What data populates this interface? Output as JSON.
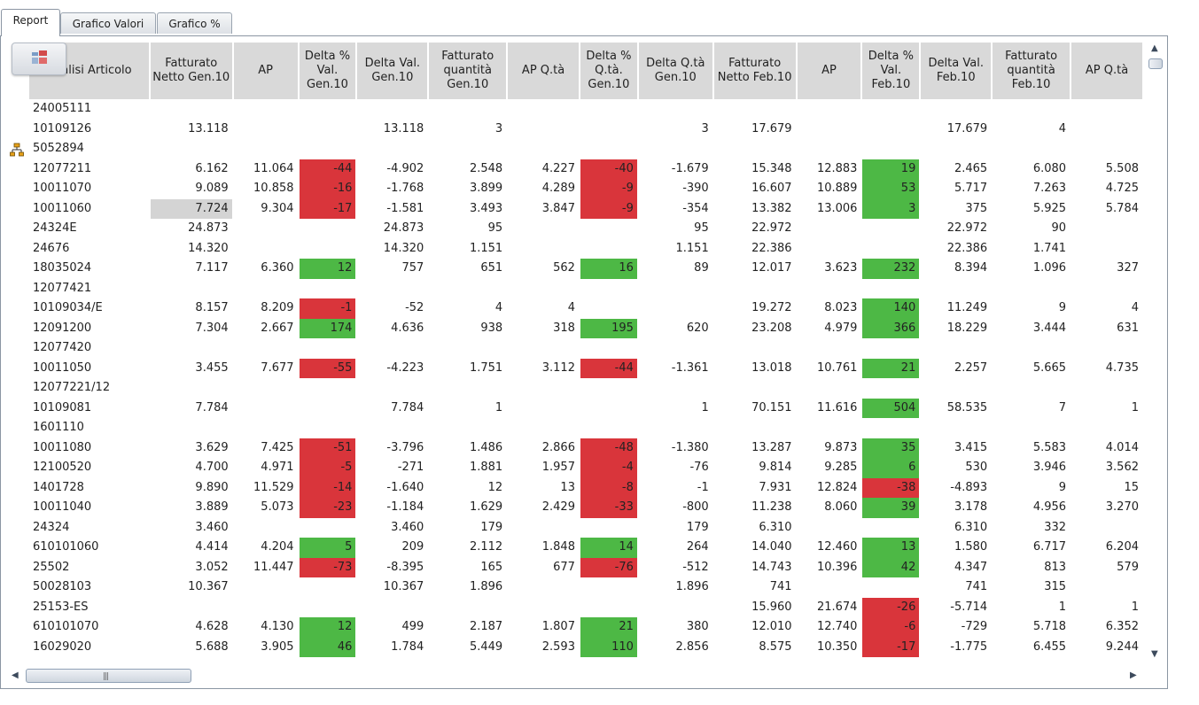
{
  "tabs": [
    "Report",
    "Grafico Valori",
    "Grafico %"
  ],
  "icons": {
    "toolbar": "layout-toggle-icon",
    "tree": "hierarchy-icon"
  },
  "colors": {
    "negative": "#d9353b",
    "positive": "#4db845",
    "header": "#d9d9d9"
  },
  "columns": [
    "Analisi Articolo",
    "Fatturato Netto Gen.10",
    "AP",
    "Delta % Val. Gen.10",
    "Delta Val. Gen.10",
    "Fatturato quantità Gen.10",
    "AP Q.tà",
    "Delta % Q.tà. Gen.10",
    "Delta Q.tà Gen.10",
    "Fatturato Netto Feb.10",
    "AP",
    "Delta % Val. Feb.10",
    "Delta Val. Feb.10",
    "Fatturato quantità Feb.10",
    "AP Q.tà"
  ],
  "rows": [
    [
      "24005111",
      "",
      "",
      "",
      "",
      "",
      "",
      "",
      "",
      "",
      "",
      "",
      "",
      "",
      ""
    ],
    [
      "10109126",
      "13.118",
      "",
      "",
      "13.118",
      "3",
      "",
      "",
      "3",
      "17.679",
      "",
      "",
      "17.679",
      "4",
      ""
    ],
    [
      "5052894",
      "",
      "",
      "",
      "",
      "",
      "",
      "",
      "",
      "",
      "",
      "",
      "",
      "",
      ""
    ],
    [
      "12077211",
      "6.162",
      "11.064",
      "-44",
      "-4.902",
      "2.548",
      "4.227",
      "-40",
      "-1.679",
      "15.348",
      "12.883",
      "19",
      "2.465",
      "6.080",
      "5.508"
    ],
    [
      "10011070",
      "9.089",
      "10.858",
      "-16",
      "-1.768",
      "3.899",
      "4.289",
      "-9",
      "-390",
      "16.607",
      "10.889",
      "53",
      "5.717",
      "7.263",
      "4.725"
    ],
    [
      "10011060",
      "7.724",
      "9.304",
      "-17",
      "-1.581",
      "3.493",
      "3.847",
      "-9",
      "-354",
      "13.382",
      "13.006",
      "3",
      "375",
      "5.925",
      "5.784"
    ],
    [
      "24324E",
      "24.873",
      "",
      "",
      "24.873",
      "95",
      "",
      "",
      "95",
      "22.972",
      "",
      "",
      "22.972",
      "90",
      ""
    ],
    [
      "24676",
      "14.320",
      "",
      "",
      "14.320",
      "1.151",
      "",
      "",
      "1.151",
      "22.386",
      "",
      "",
      "22.386",
      "1.741",
      ""
    ],
    [
      "18035024",
      "7.117",
      "6.360",
      "12",
      "757",
      "651",
      "562",
      "16",
      "89",
      "12.017",
      "3.623",
      "232",
      "8.394",
      "1.096",
      "327"
    ],
    [
      "12077421",
      "",
      "",
      "",
      "",
      "",
      "",
      "",
      "",
      "",
      "",
      "",
      "",
      "",
      ""
    ],
    [
      "10109034/E",
      "8.157",
      "8.209",
      "-1",
      "-52",
      "4",
      "4",
      "",
      "",
      "19.272",
      "8.023",
      "140",
      "11.249",
      "9",
      "4"
    ],
    [
      "12091200",
      "7.304",
      "2.667",
      "174",
      "4.636",
      "938",
      "318",
      "195",
      "620",
      "23.208",
      "4.979",
      "366",
      "18.229",
      "3.444",
      "631"
    ],
    [
      "12077420",
      "",
      "",
      "",
      "",
      "",
      "",
      "",
      "",
      "",
      "",
      "",
      "",
      "",
      ""
    ],
    [
      "10011050",
      "3.455",
      "7.677",
      "-55",
      "-4.223",
      "1.751",
      "3.112",
      "-44",
      "-1.361",
      "13.018",
      "10.761",
      "21",
      "2.257",
      "5.665",
      "4.735"
    ],
    [
      "12077221/12",
      "",
      "",
      "",
      "",
      "",
      "",
      "",
      "",
      "",
      "",
      "",
      "",
      "",
      ""
    ],
    [
      "10109081",
      "7.784",
      "",
      "",
      "7.784",
      "1",
      "",
      "",
      "1",
      "70.151",
      "11.616",
      "504",
      "58.535",
      "7",
      "1"
    ],
    [
      "1601110",
      "",
      "",
      "",
      "",
      "",
      "",
      "",
      "",
      "",
      "",
      "",
      "",
      "",
      ""
    ],
    [
      "10011080",
      "3.629",
      "7.425",
      "-51",
      "-3.796",
      "1.486",
      "2.866",
      "-48",
      "-1.380",
      "13.287",
      "9.873",
      "35",
      "3.415",
      "5.583",
      "4.014"
    ],
    [
      "12100520",
      "4.700",
      "4.971",
      "-5",
      "-271",
      "1.881",
      "1.957",
      "-4",
      "-76",
      "9.814",
      "9.285",
      "6",
      "530",
      "3.946",
      "3.562"
    ],
    [
      "1401728",
      "9.890",
      "11.529",
      "-14",
      "-1.640",
      "12",
      "13",
      "-8",
      "-1",
      "7.931",
      "12.824",
      "-38",
      "-4.893",
      "9",
      "15"
    ],
    [
      "10011040",
      "3.889",
      "5.073",
      "-23",
      "-1.184",
      "1.629",
      "2.429",
      "-33",
      "-800",
      "11.238",
      "8.060",
      "39",
      "3.178",
      "4.956",
      "3.270"
    ],
    [
      "24324",
      "3.460",
      "",
      "",
      "3.460",
      "179",
      "",
      "",
      "179",
      "6.310",
      "",
      "",
      "6.310",
      "332",
      ""
    ],
    [
      "610101060",
      "4.414",
      "4.204",
      "5",
      "209",
      "2.112",
      "1.848",
      "14",
      "264",
      "14.040",
      "12.460",
      "13",
      "1.580",
      "6.717",
      "6.204"
    ],
    [
      "25502",
      "3.052",
      "11.447",
      "-73",
      "-8.395",
      "165",
      "677",
      "-76",
      "-512",
      "14.743",
      "10.396",
      "42",
      "4.347",
      "813",
      "579"
    ],
    [
      "50028103",
      "10.367",
      "",
      "",
      "10.367",
      "1.896",
      "",
      "",
      "1.896",
      "741",
      "",
      "",
      "741",
      "315",
      ""
    ],
    [
      "25153-ES",
      "",
      "",
      "",
      "",
      "",
      "",
      "",
      "",
      "15.960",
      "21.674",
      "-26",
      "-5.714",
      "1",
      "1"
    ],
    [
      "610101070",
      "4.628",
      "4.130",
      "12",
      "499",
      "2.187",
      "1.807",
      "21",
      "380",
      "12.010",
      "12.740",
      "-6",
      "-729",
      "5.718",
      "6.352"
    ],
    [
      "16029020",
      "5.688",
      "3.905",
      "46",
      "1.784",
      "5.449",
      "2.593",
      "110",
      "2.856",
      "8.575",
      "10.350",
      "-17",
      "-1.775",
      "6.455",
      "9.244"
    ]
  ]
}
